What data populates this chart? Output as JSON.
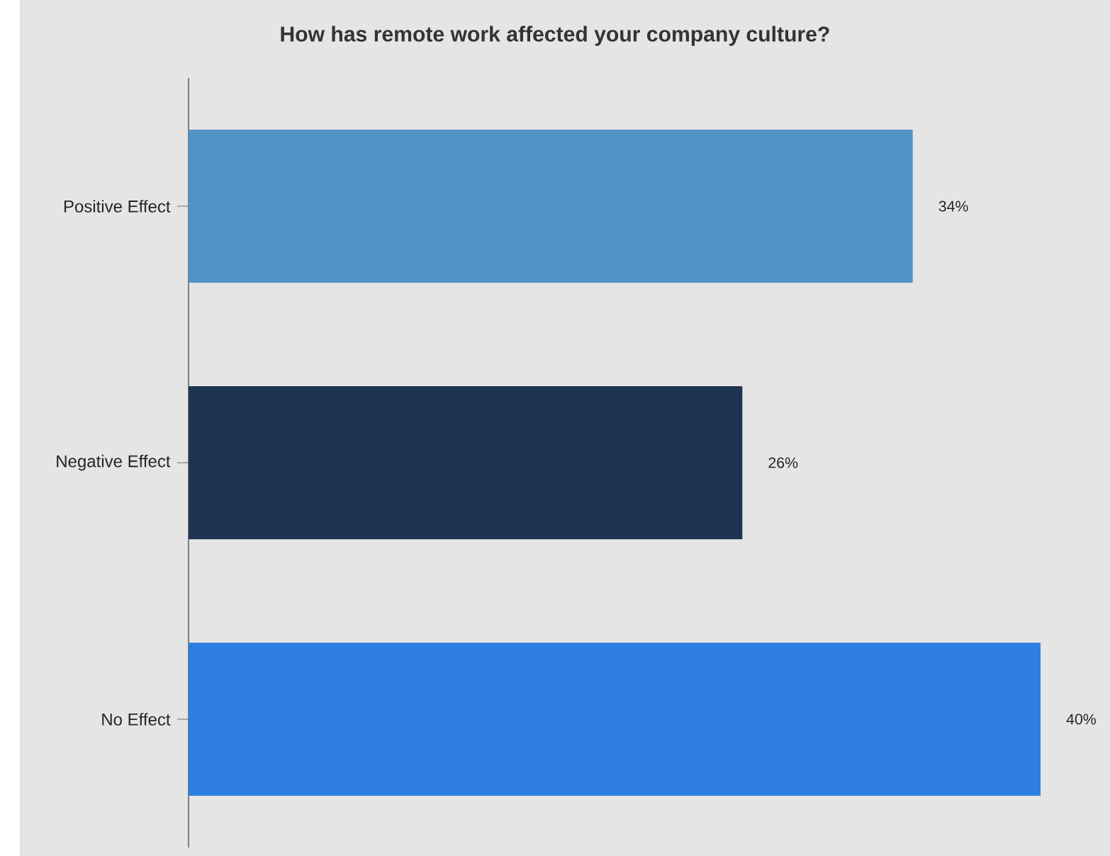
{
  "chart_data": {
    "type": "bar",
    "orientation": "horizontal",
    "title": "How has remote work affected your company culture?",
    "categories": [
      "Positive Effect",
      "Negative Effect",
      "No Effect"
    ],
    "values": [
      34,
      26,
      40
    ],
    "colors": [
      "#5294c6",
      "#1f3450",
      "#2f7fe0"
    ],
    "value_labels": [
      "34%",
      "26%",
      "40%"
    ]
  }
}
